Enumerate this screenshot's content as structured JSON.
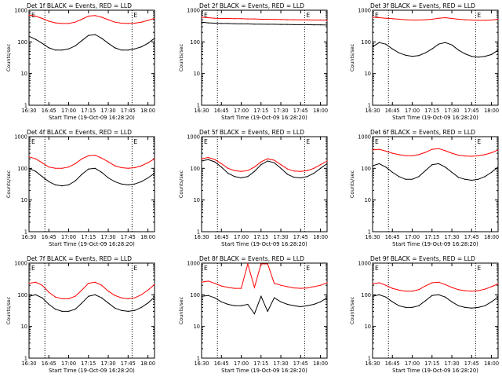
{
  "chart_data": [
    {
      "type": "line",
      "title": "Det 1f BLACK = Events, RED = LLD",
      "xlabel": "Start Time (19-Oct-09 16:28:20)",
      "ylabel": "Counts/sec",
      "yscale": "log",
      "ylim": [
        1,
        1000
      ],
      "xlim": [
        "16:30",
        "18:05"
      ],
      "x_ticks": [
        "16:30",
        "16:45",
        "17:00",
        "17:15",
        "17:30",
        "17:45",
        "18:00"
      ],
      "y_ticks": [
        "1",
        "10",
        "100",
        "1000"
      ],
      "vlines": [
        "16:42",
        "17:48"
      ],
      "markers": [
        "E",
        "E"
      ],
      "x": [
        "16:30",
        "16:35",
        "16:40",
        "16:45",
        "16:50",
        "16:55",
        "17:00",
        "17:05",
        "17:10",
        "17:15",
        "17:20",
        "17:25",
        "17:30",
        "17:35",
        "17:40",
        "17:45",
        "17:50",
        "17:55",
        "18:00",
        "18:05"
      ],
      "series": [
        {
          "color": "#000000",
          "values": [
            150,
            120,
            90,
            65,
            55,
            55,
            60,
            75,
            110,
            160,
            170,
            130,
            90,
            65,
            55,
            55,
            60,
            70,
            90,
            130
          ]
        },
        {
          "color": "#ff0000",
          "values": [
            700,
            650,
            550,
            450,
            400,
            380,
            380,
            420,
            520,
            650,
            680,
            600,
            500,
            420,
            390,
            380,
            390,
            420,
            480,
            550
          ]
        }
      ]
    },
    {
      "type": "line",
      "title": "Det 2f BLACK = Events, RED = LLD",
      "xlabel": "Start Time (19-Oct-09 16:28:20)",
      "ylabel": "Counts/sec",
      "yscale": "log",
      "ylim": [
        1,
        1000
      ],
      "xlim": [
        "16:30",
        "18:05"
      ],
      "x_ticks": [
        "16:30",
        "16:45",
        "17:00",
        "17:15",
        "17:30",
        "17:45",
        "18:00"
      ],
      "y_ticks": [
        "1",
        "10",
        "100",
        "1000"
      ],
      "vlines": [
        "16:42",
        "17:48"
      ],
      "markers": [
        "E",
        "E"
      ],
      "x": [
        "16:30",
        "16:35",
        "16:40",
        "16:45",
        "16:50",
        "16:55",
        "17:00",
        "17:05",
        "17:10",
        "17:15",
        "17:20",
        "17:25",
        "17:30",
        "17:35",
        "17:40",
        "17:45",
        "17:50",
        "17:55",
        "18:00",
        "18:05"
      ],
      "series": [
        {
          "color": "#000000",
          "values": [
            420,
            400,
            390,
            380,
            380,
            375,
            370,
            370,
            365,
            365,
            360,
            360,
            355,
            355,
            350,
            350,
            350,
            345,
            345,
            340
          ]
        },
        {
          "color": "#ff0000",
          "values": [
            600,
            580,
            560,
            550,
            550,
            540,
            540,
            530,
            530,
            520,
            520,
            510,
            510,
            500,
            500,
            495,
            495,
            490,
            490,
            485
          ]
        }
      ]
    },
    {
      "type": "line",
      "title": "Det 3f BLACK = Events, RED = LLD",
      "xlabel": "Start Time (19-Oct-09 16:28:20)",
      "ylabel": "Counts/sec",
      "yscale": "log",
      "ylim": [
        1,
        1000
      ],
      "xlim": [
        "16:30",
        "18:05"
      ],
      "x_ticks": [
        "16:30",
        "16:45",
        "17:00",
        "17:15",
        "17:30",
        "17:45",
        "18:00"
      ],
      "y_ticks": [
        "1",
        "10",
        "100",
        "1000"
      ],
      "vlines": [
        "16:42",
        "17:48"
      ],
      "markers": [
        "E",
        "E"
      ],
      "x": [
        "16:30",
        "16:35",
        "16:40",
        "16:45",
        "16:50",
        "16:55",
        "17:00",
        "17:05",
        "17:10",
        "17:15",
        "17:20",
        "17:25",
        "17:30",
        "17:35",
        "17:40",
        "17:45",
        "17:50",
        "17:55",
        "18:00",
        "18:05"
      ],
      "series": [
        {
          "color": "#000000",
          "values": [
            70,
            95,
            85,
            60,
            45,
            38,
            35,
            37,
            45,
            60,
            85,
            95,
            80,
            55,
            42,
            35,
            33,
            35,
            40,
            55
          ]
        },
        {
          "color": "#ff0000",
          "values": [
            600,
            580,
            560,
            540,
            520,
            500,
            490,
            490,
            500,
            520,
            560,
            580,
            550,
            520,
            500,
            490,
            480,
            480,
            490,
            520
          ]
        }
      ]
    },
    {
      "type": "line",
      "title": "Det 4f BLACK = Events, RED = LLD",
      "xlabel": "Start Time (19-Oct-09 16:28:20)",
      "ylabel": "Counts/sec",
      "yscale": "log",
      "ylim": [
        1,
        1000
      ],
      "xlim": [
        "16:30",
        "18:05"
      ],
      "x_ticks": [
        "16:30",
        "16:45",
        "17:00",
        "17:15",
        "17:30",
        "17:45",
        "18:00"
      ],
      "y_ticks": [
        "1",
        "10",
        "100",
        "1000"
      ],
      "vlines": [
        "16:42",
        "17:48"
      ],
      "markers": [
        "E",
        "E"
      ],
      "x": [
        "16:30",
        "16:35",
        "16:40",
        "16:45",
        "16:50",
        "16:55",
        "17:00",
        "17:05",
        "17:10",
        "17:15",
        "17:20",
        "17:25",
        "17:30",
        "17:35",
        "17:40",
        "17:45",
        "17:50",
        "17:55",
        "18:00",
        "18:05"
      ],
      "series": [
        {
          "color": "#000000",
          "values": [
            100,
            80,
            55,
            38,
            30,
            28,
            30,
            40,
            65,
            95,
            100,
            75,
            50,
            38,
            32,
            30,
            32,
            38,
            50,
            70
          ]
        },
        {
          "color": "#ff0000",
          "values": [
            230,
            200,
            150,
            110,
            100,
            100,
            110,
            140,
            200,
            250,
            260,
            210,
            160,
            120,
            105,
            100,
            105,
            120,
            150,
            200
          ]
        }
      ]
    },
    {
      "type": "line",
      "title": "Det 5f BLACK = Events, RED = LLD",
      "xlabel": "Start Time (19-Oct-09 16:28:20)",
      "ylabel": "Counts/sec",
      "yscale": "log",
      "ylim": [
        1,
        1000
      ],
      "xlim": [
        "16:30",
        "18:05"
      ],
      "x_ticks": [
        "16:30",
        "16:45",
        "17:00",
        "17:15",
        "17:30",
        "17:45",
        "18:00"
      ],
      "y_ticks": [
        "1",
        "10",
        "100",
        "1000"
      ],
      "vlines": [
        "16:42",
        "17:48"
      ],
      "markers": [
        "E",
        "E"
      ],
      "x": [
        "16:30",
        "16:35",
        "16:40",
        "16:45",
        "16:50",
        "16:55",
        "17:00",
        "17:05",
        "17:10",
        "17:15",
        "17:20",
        "17:25",
        "17:30",
        "17:35",
        "17:40",
        "17:45",
        "17:50",
        "17:55",
        "18:00",
        "18:05"
      ],
      "series": [
        {
          "color": "#000000",
          "values": [
            170,
            190,
            160,
            110,
            70,
            55,
            50,
            55,
            80,
            130,
            170,
            150,
            100,
            65,
            52,
            50,
            55,
            70,
            100,
            140
          ]
        },
        {
          "color": "#ff0000",
          "values": [
            200,
            220,
            190,
            140,
            100,
            85,
            80,
            85,
            110,
            160,
            200,
            180,
            130,
            95,
            82,
            80,
            85,
            100,
            130,
            170
          ]
        }
      ]
    },
    {
      "type": "line",
      "title": "Det 6f BLACK = Events, RED = LLD",
      "xlabel": "Start Time (19-Oct-09 16:28:20)",
      "ylabel": "Counts/sec",
      "yscale": "log",
      "ylim": [
        1,
        1000
      ],
      "xlim": [
        "16:30",
        "18:05"
      ],
      "x_ticks": [
        "16:30",
        "16:45",
        "17:00",
        "17:15",
        "17:30",
        "17:45",
        "18:00"
      ],
      "y_ticks": [
        "1",
        "10",
        "100",
        "1000"
      ],
      "vlines": [
        "16:42",
        "17:48"
      ],
      "markers": [
        "E",
        "E"
      ],
      "x": [
        "16:30",
        "16:35",
        "16:40",
        "16:45",
        "16:50",
        "16:55",
        "17:00",
        "17:05",
        "17:10",
        "17:15",
        "17:20",
        "17:25",
        "17:30",
        "17:35",
        "17:40",
        "17:45",
        "17:50",
        "17:55",
        "18:00",
        "18:05"
      ],
      "series": [
        {
          "color": "#000000",
          "values": [
            120,
            140,
            110,
            75,
            55,
            45,
            45,
            55,
            85,
            130,
            140,
            110,
            75,
            52,
            45,
            42,
            45,
            55,
            75,
            110
          ]
        },
        {
          "color": "#ff0000",
          "values": [
            380,
            400,
            350,
            300,
            270,
            250,
            250,
            270,
            320,
            400,
            420,
            360,
            300,
            260,
            245,
            240,
            250,
            270,
            310,
            380
          ]
        }
      ]
    },
    {
      "type": "line",
      "title": "Det 7f BLACK = Events, RED = LLD",
      "xlabel": "Start Time (19-Oct-09 16:28:20)",
      "ylabel": "Counts/sec",
      "yscale": "log",
      "ylim": [
        1,
        1000
      ],
      "xlim": [
        "16:30",
        "18:05"
      ],
      "x_ticks": [
        "16:30",
        "16:45",
        "17:00",
        "17:15",
        "17:30",
        "17:45",
        "18:00"
      ],
      "y_ticks": [
        "1",
        "10",
        "100",
        "1000"
      ],
      "vlines": [
        "16:42",
        "17:48"
      ],
      "markers": [
        "E",
        "E"
      ],
      "x": [
        "16:30",
        "16:35",
        "16:40",
        "16:45",
        "16:50",
        "16:55",
        "17:00",
        "17:05",
        "17:10",
        "17:15",
        "17:20",
        "17:25",
        "17:30",
        "17:35",
        "17:40",
        "17:45",
        "17:50",
        "17:55",
        "18:00",
        "18:05"
      ],
      "series": [
        {
          "color": "#000000",
          "values": [
            90,
            100,
            80,
            50,
            35,
            30,
            30,
            35,
            55,
            90,
            100,
            80,
            55,
            38,
            32,
            30,
            32,
            40,
            55,
            85
          ]
        },
        {
          "color": "#ff0000",
          "values": [
            230,
            250,
            200,
            120,
            85,
            75,
            75,
            90,
            140,
            230,
            250,
            200,
            130,
            95,
            80,
            75,
            80,
            100,
            140,
            210
          ]
        }
      ]
    },
    {
      "type": "line",
      "title": "Det 8f BLACK = Events, RED = LLD",
      "xlabel": "Start Time (19-Oct-09 16:28:20)",
      "ylabel": "Counts/sec",
      "yscale": "log",
      "ylim": [
        1,
        1000
      ],
      "xlim": [
        "16:30",
        "18:05"
      ],
      "x_ticks": [
        "16:30",
        "16:45",
        "17:00",
        "17:15",
        "17:30",
        "17:45",
        "18:00"
      ],
      "y_ticks": [
        "1",
        "10",
        "100",
        "1000"
      ],
      "vlines": [
        "16:42",
        "17:48"
      ],
      "markers": [
        "E",
        "E"
      ],
      "x": [
        "16:30",
        "16:35",
        "16:40",
        "16:45",
        "16:50",
        "16:55",
        "17:00",
        "17:05",
        "17:10",
        "17:15",
        "17:20",
        "17:25",
        "17:30",
        "17:35",
        "17:40",
        "17:45",
        "17:50",
        "17:55",
        "18:00",
        "18:05"
      ],
      "series": [
        {
          "color": "#000000",
          "values": [
            90,
            95,
            80,
            60,
            50,
            45,
            45,
            50,
            25,
            90,
            30,
            80,
            60,
            50,
            45,
            42,
            45,
            50,
            60,
            80
          ]
        },
        {
          "color": "#ff0000",
          "values": [
            250,
            270,
            230,
            190,
            170,
            160,
            160,
            1000,
            170,
            1000,
            1000,
            230,
            200,
            180,
            165,
            160,
            165,
            180,
            200,
            240
          ]
        }
      ]
    },
    {
      "type": "line",
      "title": "Det 9f BLACK = Events, RED = LLD",
      "xlabel": "Start Time (19-Oct-09 16:28:20)",
      "ylabel": "Counts/sec",
      "yscale": "log",
      "ylim": [
        1,
        1000
      ],
      "xlim": [
        "16:30",
        "18:05"
      ],
      "x_ticks": [
        "16:30",
        "16:45",
        "17:00",
        "17:15",
        "17:30",
        "17:45",
        "18:00"
      ],
      "y_ticks": [
        "1",
        "10",
        "100",
        "1000"
      ],
      "vlines": [
        "16:42",
        "17:48"
      ],
      "markers": [
        "E",
        "E"
      ],
      "x": [
        "16:30",
        "16:35",
        "16:40",
        "16:45",
        "16:50",
        "16:55",
        "17:00",
        "17:05",
        "17:10",
        "17:15",
        "17:20",
        "17:25",
        "17:30",
        "17:35",
        "17:40",
        "17:45",
        "17:50",
        "17:55",
        "18:00",
        "18:05"
      ],
      "series": [
        {
          "color": "#000000",
          "values": [
            90,
            100,
            85,
            60,
            45,
            40,
            40,
            45,
            65,
            95,
            100,
            85,
            60,
            45,
            40,
            38,
            40,
            45,
            60,
            85
          ]
        },
        {
          "color": "#ff0000",
          "values": [
            220,
            240,
            200,
            160,
            140,
            130,
            130,
            145,
            190,
            240,
            250,
            210,
            170,
            145,
            135,
            130,
            135,
            150,
            180,
            220
          ]
        }
      ]
    }
  ]
}
